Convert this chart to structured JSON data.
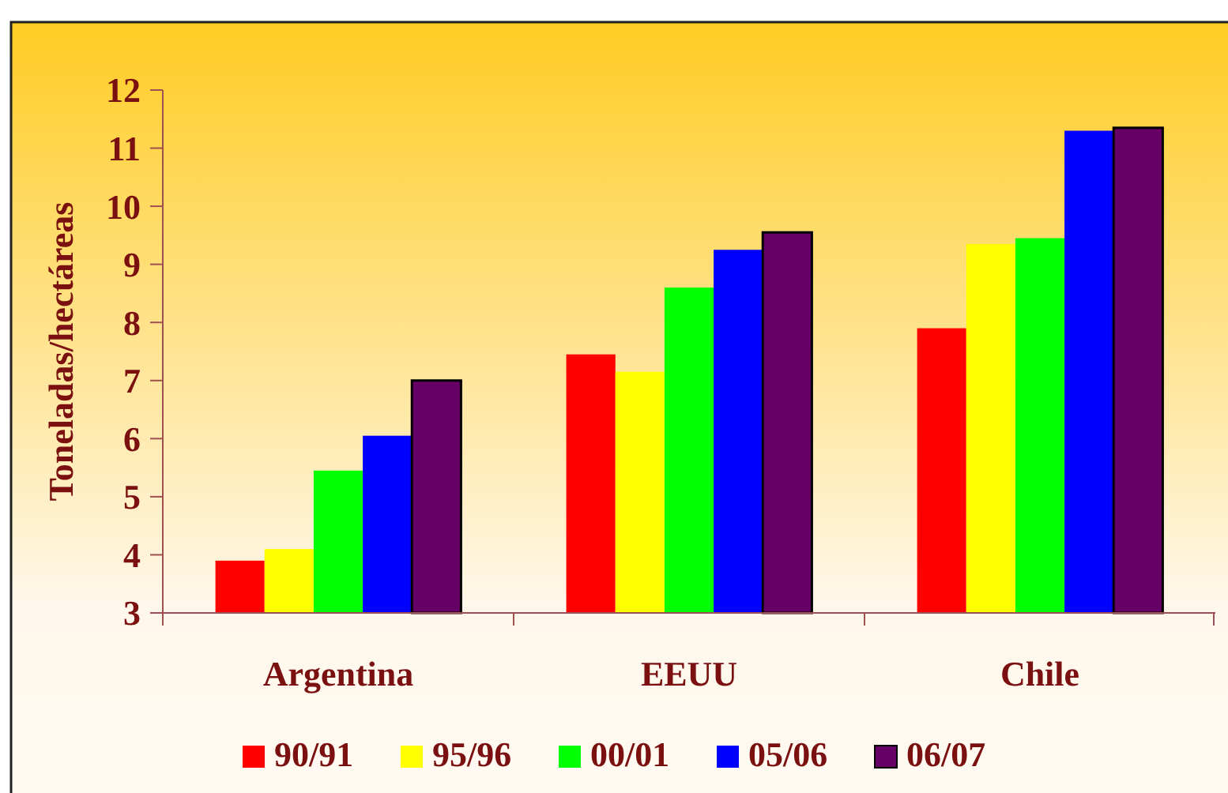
{
  "chart_data": {
    "type": "bar",
    "ylabel": "Toneladas/hectáreas",
    "categories": [
      "Argentina",
      "EEUU",
      "Chile"
    ],
    "series": [
      {
        "name": "90/91",
        "color": "#ff0000",
        "values": [
          3.9,
          7.45,
          7.9
        ]
      },
      {
        "name": "95/96",
        "color": "#ffff00",
        "values": [
          4.1,
          7.15,
          9.35
        ]
      },
      {
        "name": "00/01",
        "color": "#00ff00",
        "values": [
          5.45,
          8.6,
          9.45
        ]
      },
      {
        "name": "05/06",
        "color": "#0000ff",
        "values": [
          6.05,
          9.25,
          11.3
        ]
      },
      {
        "name": "06/07",
        "color": "#660066",
        "values": [
          7.0,
          9.55,
          11.35
        ]
      }
    ],
    "ylim": [
      3,
      12
    ],
    "yticks": [
      3,
      4,
      5,
      6,
      7,
      8,
      9,
      10,
      11,
      12
    ],
    "grid": false,
    "legend": "bottom"
  }
}
